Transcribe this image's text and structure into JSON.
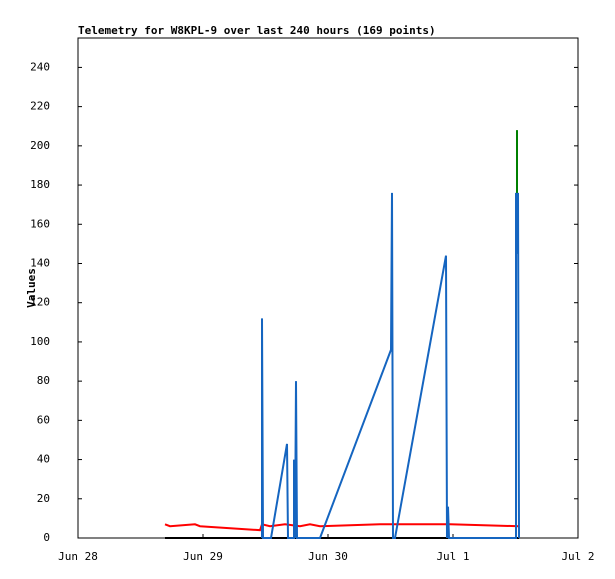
{
  "chart_data": {
    "type": "line",
    "title": "Telemetry for W8KPL-9 over last 240 hours (169 points)",
    "y_label": "Values",
    "xlim": [
      0,
      4
    ],
    "xticks": [
      {
        "value": 0,
        "label": "Jun 28"
      },
      {
        "value": 1,
        "label": "Jun 29"
      },
      {
        "value": 2,
        "label": "Jun 30"
      },
      {
        "value": 3,
        "label": "Jul 1"
      },
      {
        "value": 4,
        "label": "Jul 2"
      }
    ],
    "ylim": [
      0,
      255
    ],
    "yticks": [
      0,
      20,
      40,
      60,
      80,
      100,
      120,
      140,
      160,
      180,
      200,
      220,
      240
    ],
    "series": [
      {
        "color": "#000000",
        "x": [
          0.696,
          3.528
        ],
        "values": [
          0,
          0
        ]
      },
      {
        "color": "#ff0000",
        "x": [
          0.696,
          0.736,
          0.936,
          0.976,
          1.456,
          1.472,
          1.536,
          1.656,
          1.776,
          1.856,
          1.936,
          2.416,
          2.976,
          3.528
        ],
        "values": [
          7,
          6,
          7,
          6,
          4,
          7,
          6,
          7,
          6,
          7,
          6,
          7,
          7,
          6
        ]
      },
      {
        "color": "#008000",
        "x": [
          3.512,
          3.512,
          3.512
        ],
        "values": [
          176,
          208,
          145
        ]
      },
      {
        "color": "#1565c0",
        "x": [
          1.472,
          1.472,
          1.48,
          1.544,
          1.672,
          1.68,
          1.728,
          1.728,
          1.736,
          1.744,
          1.752,
          1.936,
          2.504,
          2.512,
          2.52,
          2.536,
          2.944,
          2.952,
          2.96,
          2.968,
          3.504,
          3.504,
          3.512,
          3.52,
          3.528
        ],
        "values": [
          0,
          112,
          0,
          0,
          48,
          0,
          0,
          40,
          0,
          80,
          0,
          0,
          96,
          176,
          0,
          0,
          144,
          0,
          16,
          0,
          0,
          176,
          145,
          176,
          0
        ]
      }
    ]
  }
}
